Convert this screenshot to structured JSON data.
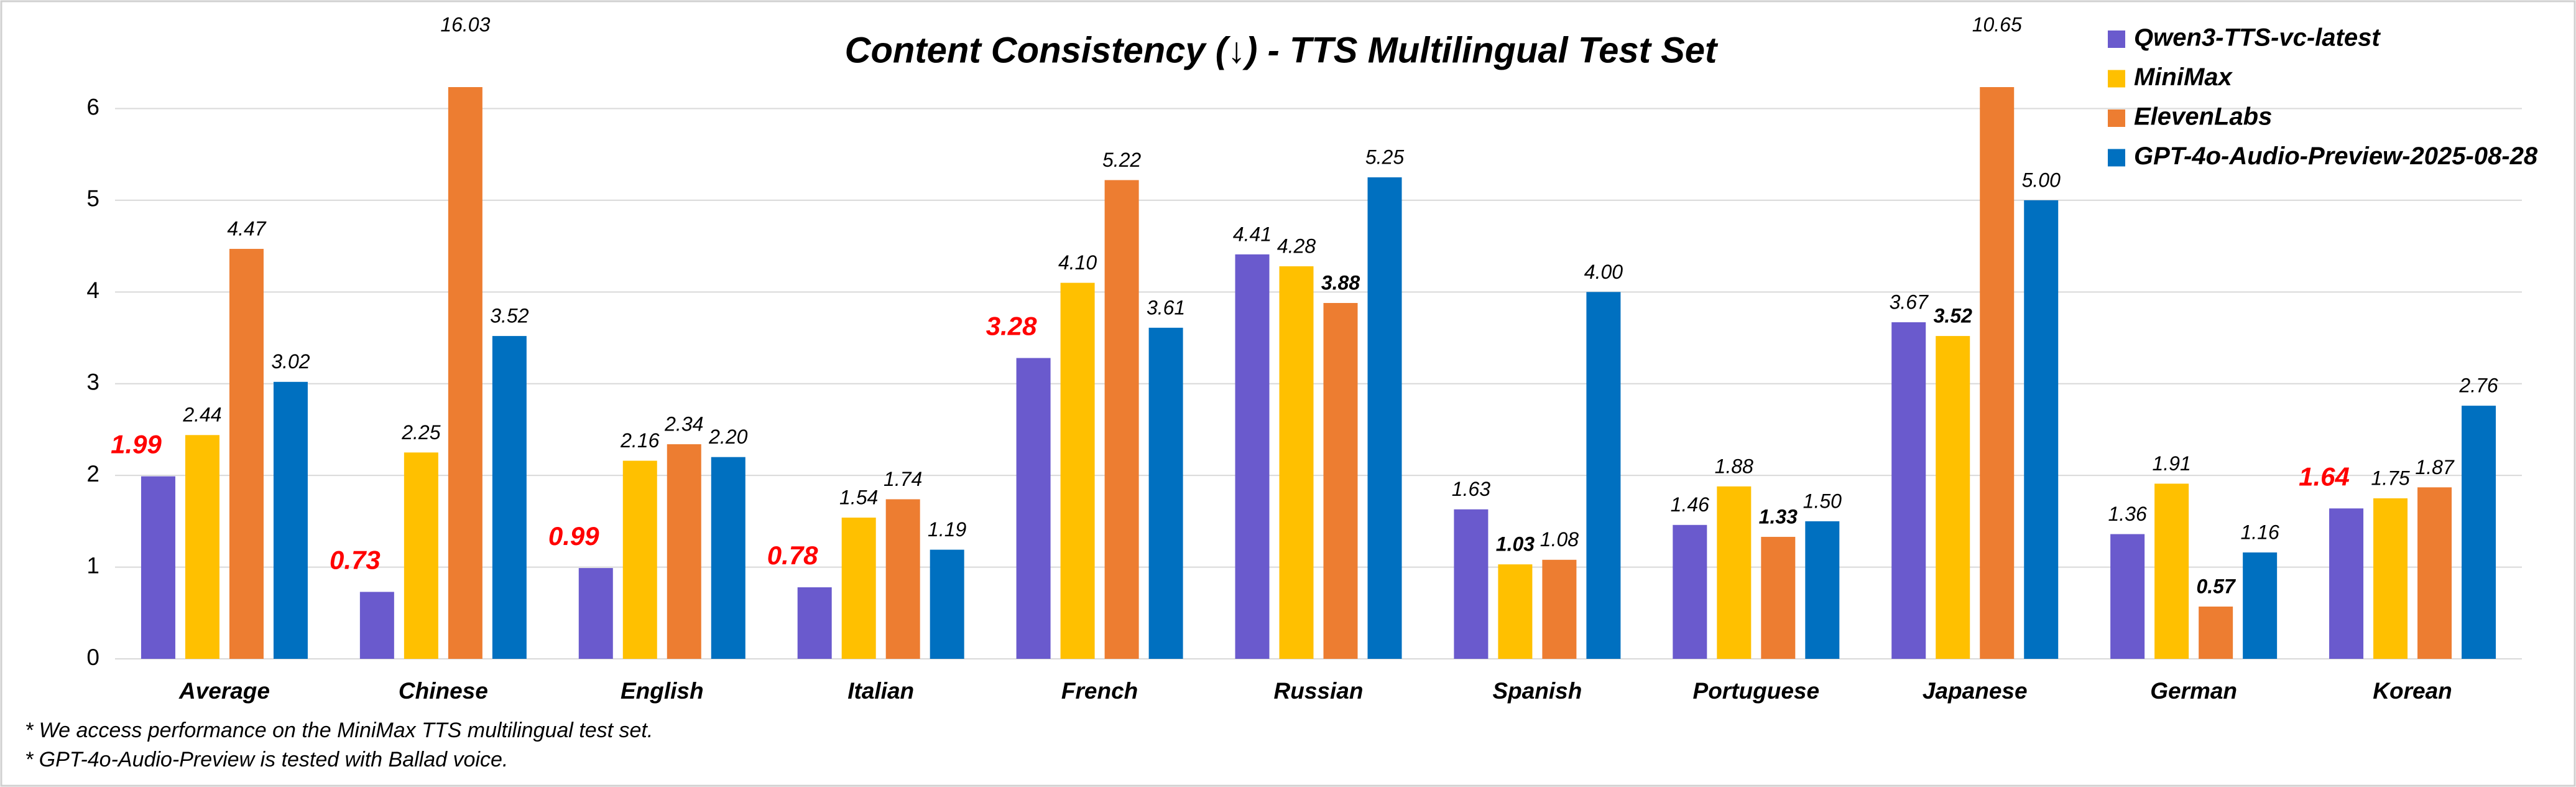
{
  "chart_data": {
    "type": "bar",
    "title": "Content Consistency (↓) - TTS Multilingual Test Set",
    "categories": [
      "Average",
      "Chinese",
      "English",
      "Italian",
      "French",
      "Russian",
      "Spanish",
      "Portuguese",
      "Japanese",
      "German",
      "Korean"
    ],
    "series": [
      {
        "name": "Qwen3-TTS-vc-latest",
        "color": "#6a5acd",
        "values": [
          1.99,
          0.73,
          0.99,
          0.78,
          3.28,
          4.41,
          1.63,
          1.46,
          3.67,
          1.36,
          1.64
        ],
        "value_labels": [
          "1.99",
          "0.73",
          "0.99",
          "0.78",
          "3.28",
          "4.41",
          "1.63",
          "1.46",
          "3.67",
          "1.36",
          "1.64"
        ]
      },
      {
        "name": "MiniMax",
        "color": "#ffc000",
        "values": [
          2.44,
          2.25,
          2.16,
          1.54,
          4.1,
          4.28,
          1.03,
          1.88,
          3.52,
          1.91,
          1.75
        ],
        "value_labels": [
          "2.44",
          "2.25",
          "2.16",
          "1.54",
          "4.10",
          "4.28",
          "1.03",
          "1.88",
          "3.52",
          "1.91",
          "1.75"
        ]
      },
      {
        "name": "ElevenLabs",
        "color": "#ed7d31",
        "values": [
          4.47,
          16.03,
          2.34,
          1.74,
          5.22,
          3.88,
          1.08,
          1.33,
          10.65,
          0.57,
          1.87
        ],
        "value_labels": [
          "4.47",
          "16.03",
          "2.34",
          "1.74",
          "5.22",
          "3.88",
          "1.08",
          "1.33",
          "10.65",
          "0.57",
          "1.87"
        ]
      },
      {
        "name": "GPT-4o-Audio-Preview-2025-08-28",
        "color": "#0070c0",
        "values": [
          3.02,
          3.52,
          2.2,
          1.19,
          3.61,
          5.25,
          4.0,
          1.5,
          5.0,
          1.16,
          2.76
        ],
        "value_labels": [
          "3.02",
          "3.52",
          "2.20",
          "1.19",
          "3.61",
          "5.25",
          "4.00",
          "1.50",
          "5.00",
          "1.16",
          "2.76"
        ]
      }
    ],
    "ylim": [
      0,
      6.2
    ],
    "yticks": [
      0,
      1,
      2,
      3,
      4,
      5,
      6
    ],
    "grid": true,
    "legend": "top-right",
    "notes": [
      "* We access performance on the MiniMax TTS multilingual test set.",
      "* GPT-4o-Audio-Preview is tested with Ballad voice."
    ]
  }
}
